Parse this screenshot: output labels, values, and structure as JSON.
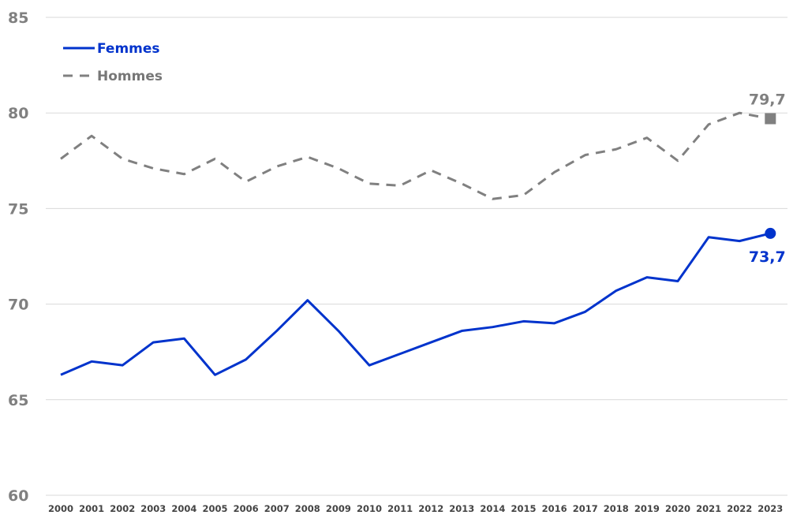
{
  "chart_data": {
    "type": "line",
    "title": "",
    "xlabel": "",
    "ylabel": "",
    "x": [
      "2000",
      "2001",
      "2002",
      "2003",
      "2004",
      "2005",
      "2006",
      "2007",
      "2008",
      "2009",
      "2010",
      "2011",
      "2012",
      "2013",
      "2014",
      "2015",
      "2016",
      "2017",
      "2018",
      "2019",
      "2020",
      "2021",
      "2022",
      "2023"
    ],
    "ylim": [
      60,
      85
    ],
    "yticks": [
      "60",
      "65",
      "70",
      "75",
      "80",
      "85"
    ],
    "grid": "horizontal",
    "legend_position": "top-left",
    "series": [
      {
        "name": "Femmes",
        "color": "#0033cc",
        "style": "solid",
        "marker": "circle",
        "end_label": "73,7",
        "values": [
          66.3,
          67.0,
          66.8,
          68.0,
          68.2,
          66.3,
          67.1,
          68.6,
          70.2,
          68.6,
          66.8,
          67.4,
          68.0,
          68.6,
          68.8,
          69.1,
          69.0,
          69.6,
          70.7,
          71.4,
          71.2,
          73.5,
          73.3,
          73.7
        ]
      },
      {
        "name": "Hommes",
        "color": "#808080",
        "style": "dashed",
        "marker": "square",
        "end_label": "79,7",
        "values": [
          77.6,
          78.8,
          77.6,
          77.1,
          76.8,
          77.6,
          76.4,
          77.2,
          77.7,
          77.1,
          76.3,
          76.2,
          77.0,
          76.3,
          75.5,
          75.7,
          76.9,
          77.8,
          78.1,
          78.7,
          77.5,
          79.4,
          80.0,
          79.7
        ]
      }
    ]
  }
}
